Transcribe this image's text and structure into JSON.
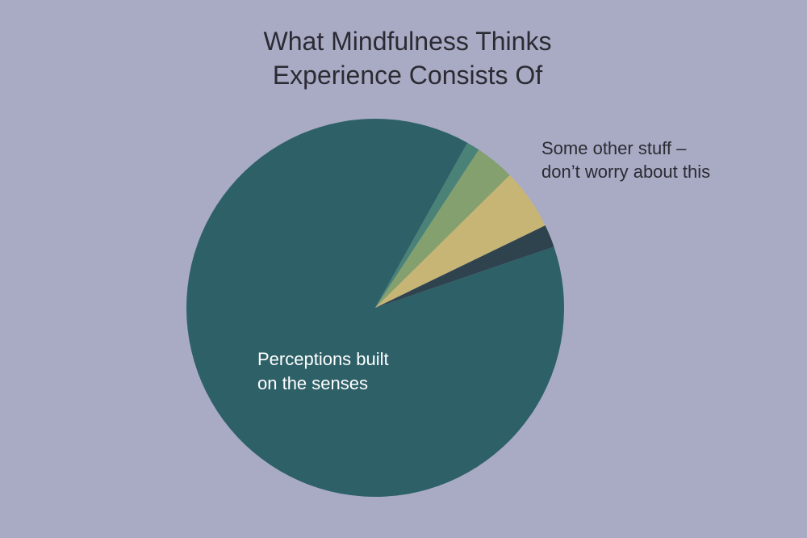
{
  "chart_data": {
    "type": "pie",
    "title_lines": [
      "What Mindfulness Thinks",
      "Experience Consists Of"
    ],
    "slices": [
      {
        "value": 86.4,
        "color": "#2e6068",
        "label_lines": [
          "Perceptions built",
          "on the senses"
        ],
        "label_color": "#ffffff"
      },
      {
        "value": 1.9,
        "color": "#2f434f",
        "label_lines": []
      },
      {
        "value": 5.1,
        "color": "#c7b575",
        "label_lines": []
      },
      {
        "value": 3.3,
        "color": "#84a06e",
        "label_lines": []
      },
      {
        "value": 1.1,
        "color": "#4a8277",
        "label_lines": []
      }
    ],
    "annotation": {
      "lines": [
        "Some other stuff –",
        "don’t worry about this"
      ],
      "color": "#2b2b33"
    },
    "start_angle_deg": 60.8,
    "direction": "counterclockwise"
  }
}
